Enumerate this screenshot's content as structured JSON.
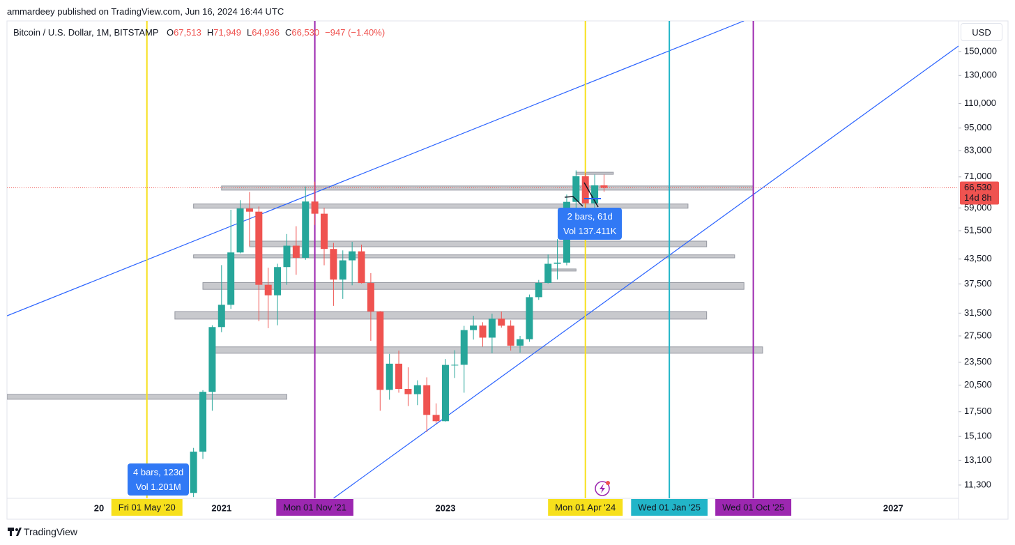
{
  "header": "ammardeey published on TradingView.com, Jun 16, 2024 16:44 UTC",
  "footer": "TradingView",
  "chart_data": {
    "type": "candlestick",
    "title": "Bitcoin / U.S. Dollar, 1M, BITSTAMP",
    "ohlc_legend": [
      {
        "key": "O",
        "value": "67,513"
      },
      {
        "key": "H",
        "value": "71,949"
      },
      {
        "key": "L",
        "value": "64,936"
      },
      {
        "key": "C",
        "value": "66,530"
      }
    ],
    "change": "−947 (−1.40%)",
    "currency": "USD",
    "last_price_label": "66,530",
    "countdown": "14d 8h",
    "up_color": "#26a69a",
    "down_color": "#ef5350",
    "log_scale": true,
    "grid": false,
    "x": [
      "2020-10",
      "2020-11",
      "2020-12",
      "2021-01",
      "2021-02",
      "2021-03",
      "2021-04",
      "2021-05",
      "2021-06",
      "2021-07",
      "2021-08",
      "2021-09",
      "2021-10",
      "2021-11",
      "2021-12",
      "2022-01",
      "2022-02",
      "2022-03",
      "2022-04",
      "2022-05",
      "2022-06",
      "2022-07",
      "2022-08",
      "2022-09",
      "2022-10",
      "2022-11",
      "2022-12",
      "2023-01",
      "2023-02",
      "2023-03",
      "2023-04",
      "2023-05",
      "2023-06",
      "2023-07",
      "2023-08",
      "2023-09",
      "2023-10",
      "2023-11",
      "2023-12",
      "2024-01",
      "2024-02",
      "2024-03",
      "2024-04",
      "2024-05",
      "2024-06"
    ],
    "open": [
      10780,
      13790,
      19700,
      28990,
      33110,
      45240,
      58800,
      57700,
      37300,
      35040,
      41460,
      47100,
      43820,
      61300,
      57000,
      46200,
      38480,
      43160,
      45540,
      37700,
      31800,
      19930,
      23300,
      20050,
      19430,
      20490,
      17170,
      16540,
      23130,
      23150,
      28470,
      29250,
      27220,
      30480,
      29230,
      25940,
      26960,
      34650,
      37720,
      42280,
      42580,
      61170,
      71300,
      60640,
      67513
    ],
    "high": [
      14100,
      19900,
      29300,
      41950,
      58350,
      61780,
      64900,
      59500,
      41300,
      42300,
      50500,
      52900,
      67000,
      69000,
      59100,
      47900,
      45800,
      48200,
      47400,
      40000,
      31900,
      24700,
      25200,
      22800,
      21100,
      21480,
      18390,
      23960,
      25250,
      29200,
      31000,
      29830,
      31400,
      31800,
      30200,
      27500,
      35200,
      38400,
      44700,
      48970,
      63900,
      73800,
      72800,
      71950,
      71949
    ],
    "low": [
      10520,
      13200,
      17600,
      28130,
      32300,
      45000,
      47000,
      30000,
      28800,
      29300,
      37300,
      39600,
      43300,
      53300,
      41900,
      32900,
      34300,
      37200,
      37600,
      26700,
      17600,
      18800,
      19600,
      18100,
      18200,
      15500,
      16300,
      16500,
      21400,
      19600,
      26900,
      25800,
      24800,
      28900,
      25200,
      24900,
      26550,
      34100,
      37600,
      38500,
      41900,
      59000,
      56500,
      56500,
      64936
    ],
    "close": [
      13790,
      19700,
      28990,
      33110,
      45240,
      58800,
      57700,
      37300,
      35040,
      41460,
      47100,
      43820,
      61300,
      57000,
      46200,
      38480,
      43160,
      45540,
      37700,
      31800,
      19930,
      23300,
      20050,
      19430,
      20490,
      17170,
      16540,
      23130,
      23150,
      28470,
      29250,
      27220,
      30480,
      29230,
      25940,
      26960,
      34650,
      37720,
      42280,
      42580,
      61170,
      71300,
      60640,
      67500,
      66530
    ],
    "xlim": [
      "2019-02",
      "2027-08"
    ],
    "xticks": [
      {
        "value": "2020-01",
        "label": "20"
      },
      {
        "value": "2021-01",
        "label": "2021"
      },
      {
        "value": "2023-01",
        "label": "2023"
      },
      {
        "value": "2027-01",
        "label": "2027"
      }
    ],
    "ylim": [
      10440,
      180000
    ],
    "yticks": [
      {
        "value": 150000,
        "label": "150,000"
      },
      {
        "value": 130000,
        "label": "130,000"
      },
      {
        "value": 110000,
        "label": "110,000"
      },
      {
        "value": 95000,
        "label": "95,000"
      },
      {
        "value": 83000,
        "label": "83,000"
      },
      {
        "value": 71000,
        "label": "71,000"
      },
      {
        "value": 59000,
        "label": "59,000"
      },
      {
        "value": 51500,
        "label": "51,500"
      },
      {
        "value": 43500,
        "label": "43,500"
      },
      {
        "value": 37500,
        "label": "37,500"
      },
      {
        "value": 31500,
        "label": "31,500"
      },
      {
        "value": 27500,
        "label": "27,500"
      },
      {
        "value": 23500,
        "label": "23,500"
      },
      {
        "value": 20500,
        "label": "20,500"
      },
      {
        "value": 17500,
        "label": "17,500"
      },
      {
        "value": 15100,
        "label": "15,100"
      },
      {
        "value": 13100,
        "label": "13,100"
      },
      {
        "value": 11300,
        "label": "11,300"
      }
    ],
    "vlines": [
      {
        "x": "2020-05",
        "label": "Fri 01 May '20",
        "color": "#f7e01c",
        "text_color": "#131722"
      },
      {
        "x": "2021-11",
        "label": "Mon 01 Nov '21",
        "color": "#9c27b0",
        "text_color": "#ffffff"
      },
      {
        "x": "2024-04",
        "label": "Mon 01 Apr '24",
        "color": "#f7e01c",
        "text_color": "#131722"
      },
      {
        "x": "2025-01",
        "label": "Wed 01 Jan '25",
        "color": "#22b5c8",
        "text_color": "#131722"
      },
      {
        "x": "2025-10",
        "label": "Wed 01 Oct '25",
        "color": "#9c27b0",
        "text_color": "#ffffff"
      }
    ],
    "zones": [
      {
        "x": [
          "2021-01",
          "2025-10"
        ],
        "y": [
          65600,
          67250
        ]
      },
      {
        "x": [
          "2020-10",
          "2025-03"
        ],
        "y": [
          58900,
          60400
        ]
      },
      {
        "x": [
          "2021-04",
          "2025-05"
        ],
        "y": [
          46800,
          48400
        ]
      },
      {
        "x": [
          "2020-10",
          "2025-08"
        ],
        "y": [
          43800,
          44600
        ]
      },
      {
        "x": [
          "2020-11",
          "2025-09"
        ],
        "y": [
          36300,
          37800
        ]
      },
      {
        "x": [
          "2020-08",
          "2025-05"
        ],
        "y": [
          30400,
          31800
        ]
      },
      {
        "x": [
          "2020-12",
          "2025-11"
        ],
        "y": [
          24800,
          25760
        ]
      },
      {
        "x": [
          "2019-02",
          "2021-08"
        ],
        "y": [
          18850,
          19400
        ]
      },
      {
        "x": [
          "2024-03",
          "2024-07"
        ],
        "y": [
          72500,
          73000
        ]
      },
      {
        "x": [
          "2023-12",
          "2024-03"
        ],
        "y": [
          40600,
          41000
        ]
      }
    ],
    "trend_lines": [
      {
        "x": [
          "2019-02",
          "2025-09"
        ],
        "y": [
          31000,
          180000
        ],
        "color": "#2962ff"
      },
      {
        "x": [
          "2022-01",
          "2027-08"
        ],
        "y": [
          10440,
          155000
        ],
        "color": "#2962ff"
      }
    ],
    "measures": [
      {
        "lines": [
          "2 bars, 61d",
          "Vol 137.411K"
        ]
      },
      {
        "lines": [
          "4 bars, 123d",
          "Vol 1.201M"
        ]
      }
    ]
  }
}
